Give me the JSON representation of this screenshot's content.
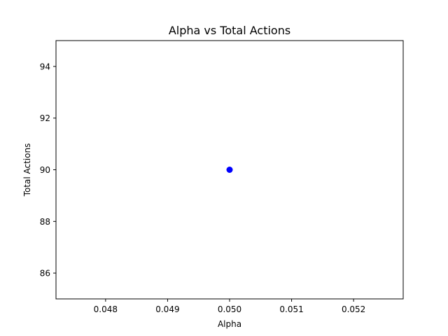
{
  "chart_data": {
    "type": "scatter",
    "title": "Alpha vs Total Actions",
    "xlabel": "Alpha",
    "ylabel": "Total Actions",
    "x": [
      0.05
    ],
    "y": [
      90
    ],
    "xlim": [
      0.0472,
      0.0528
    ],
    "ylim": [
      85,
      95
    ],
    "xticks": [
      0.048,
      0.049,
      0.05,
      0.051,
      0.052
    ],
    "xtick_labels": [
      "0.048",
      "0.049",
      "0.050",
      "0.051",
      "0.052"
    ],
    "yticks": [
      86,
      88,
      90,
      92,
      94
    ],
    "ytick_labels": [
      "86",
      "88",
      "90",
      "92",
      "94"
    ],
    "marker_color": "#0000ff",
    "grid": false,
    "legend": false
  }
}
